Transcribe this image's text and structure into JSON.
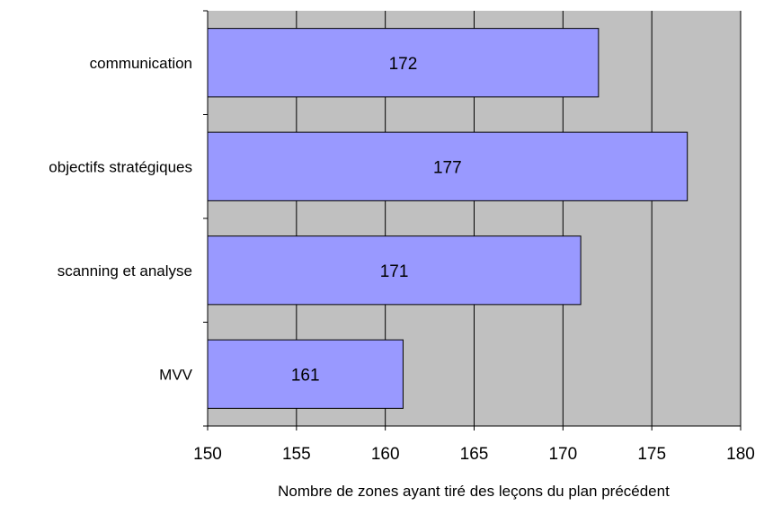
{
  "chart_data": {
    "type": "bar",
    "orientation": "horizontal",
    "title": "",
    "categories": [
      "communication",
      "objectifs stratégiques",
      "scanning et analyse",
      "MVV"
    ],
    "values": [
      172,
      177,
      171,
      161
    ],
    "xlabel": "Nombre de zones ayant tiré des leçons du plan précédent",
    "ylabel": "",
    "xlim": [
      150,
      180
    ],
    "xticks": [
      150,
      155,
      160,
      165,
      170,
      175,
      180
    ],
    "grid": true,
    "legend": "none",
    "colors": {
      "bar": "#9999ff",
      "bar_border": "#000000",
      "plot_background": "#c0c0c0",
      "gridline": "#000000"
    }
  }
}
